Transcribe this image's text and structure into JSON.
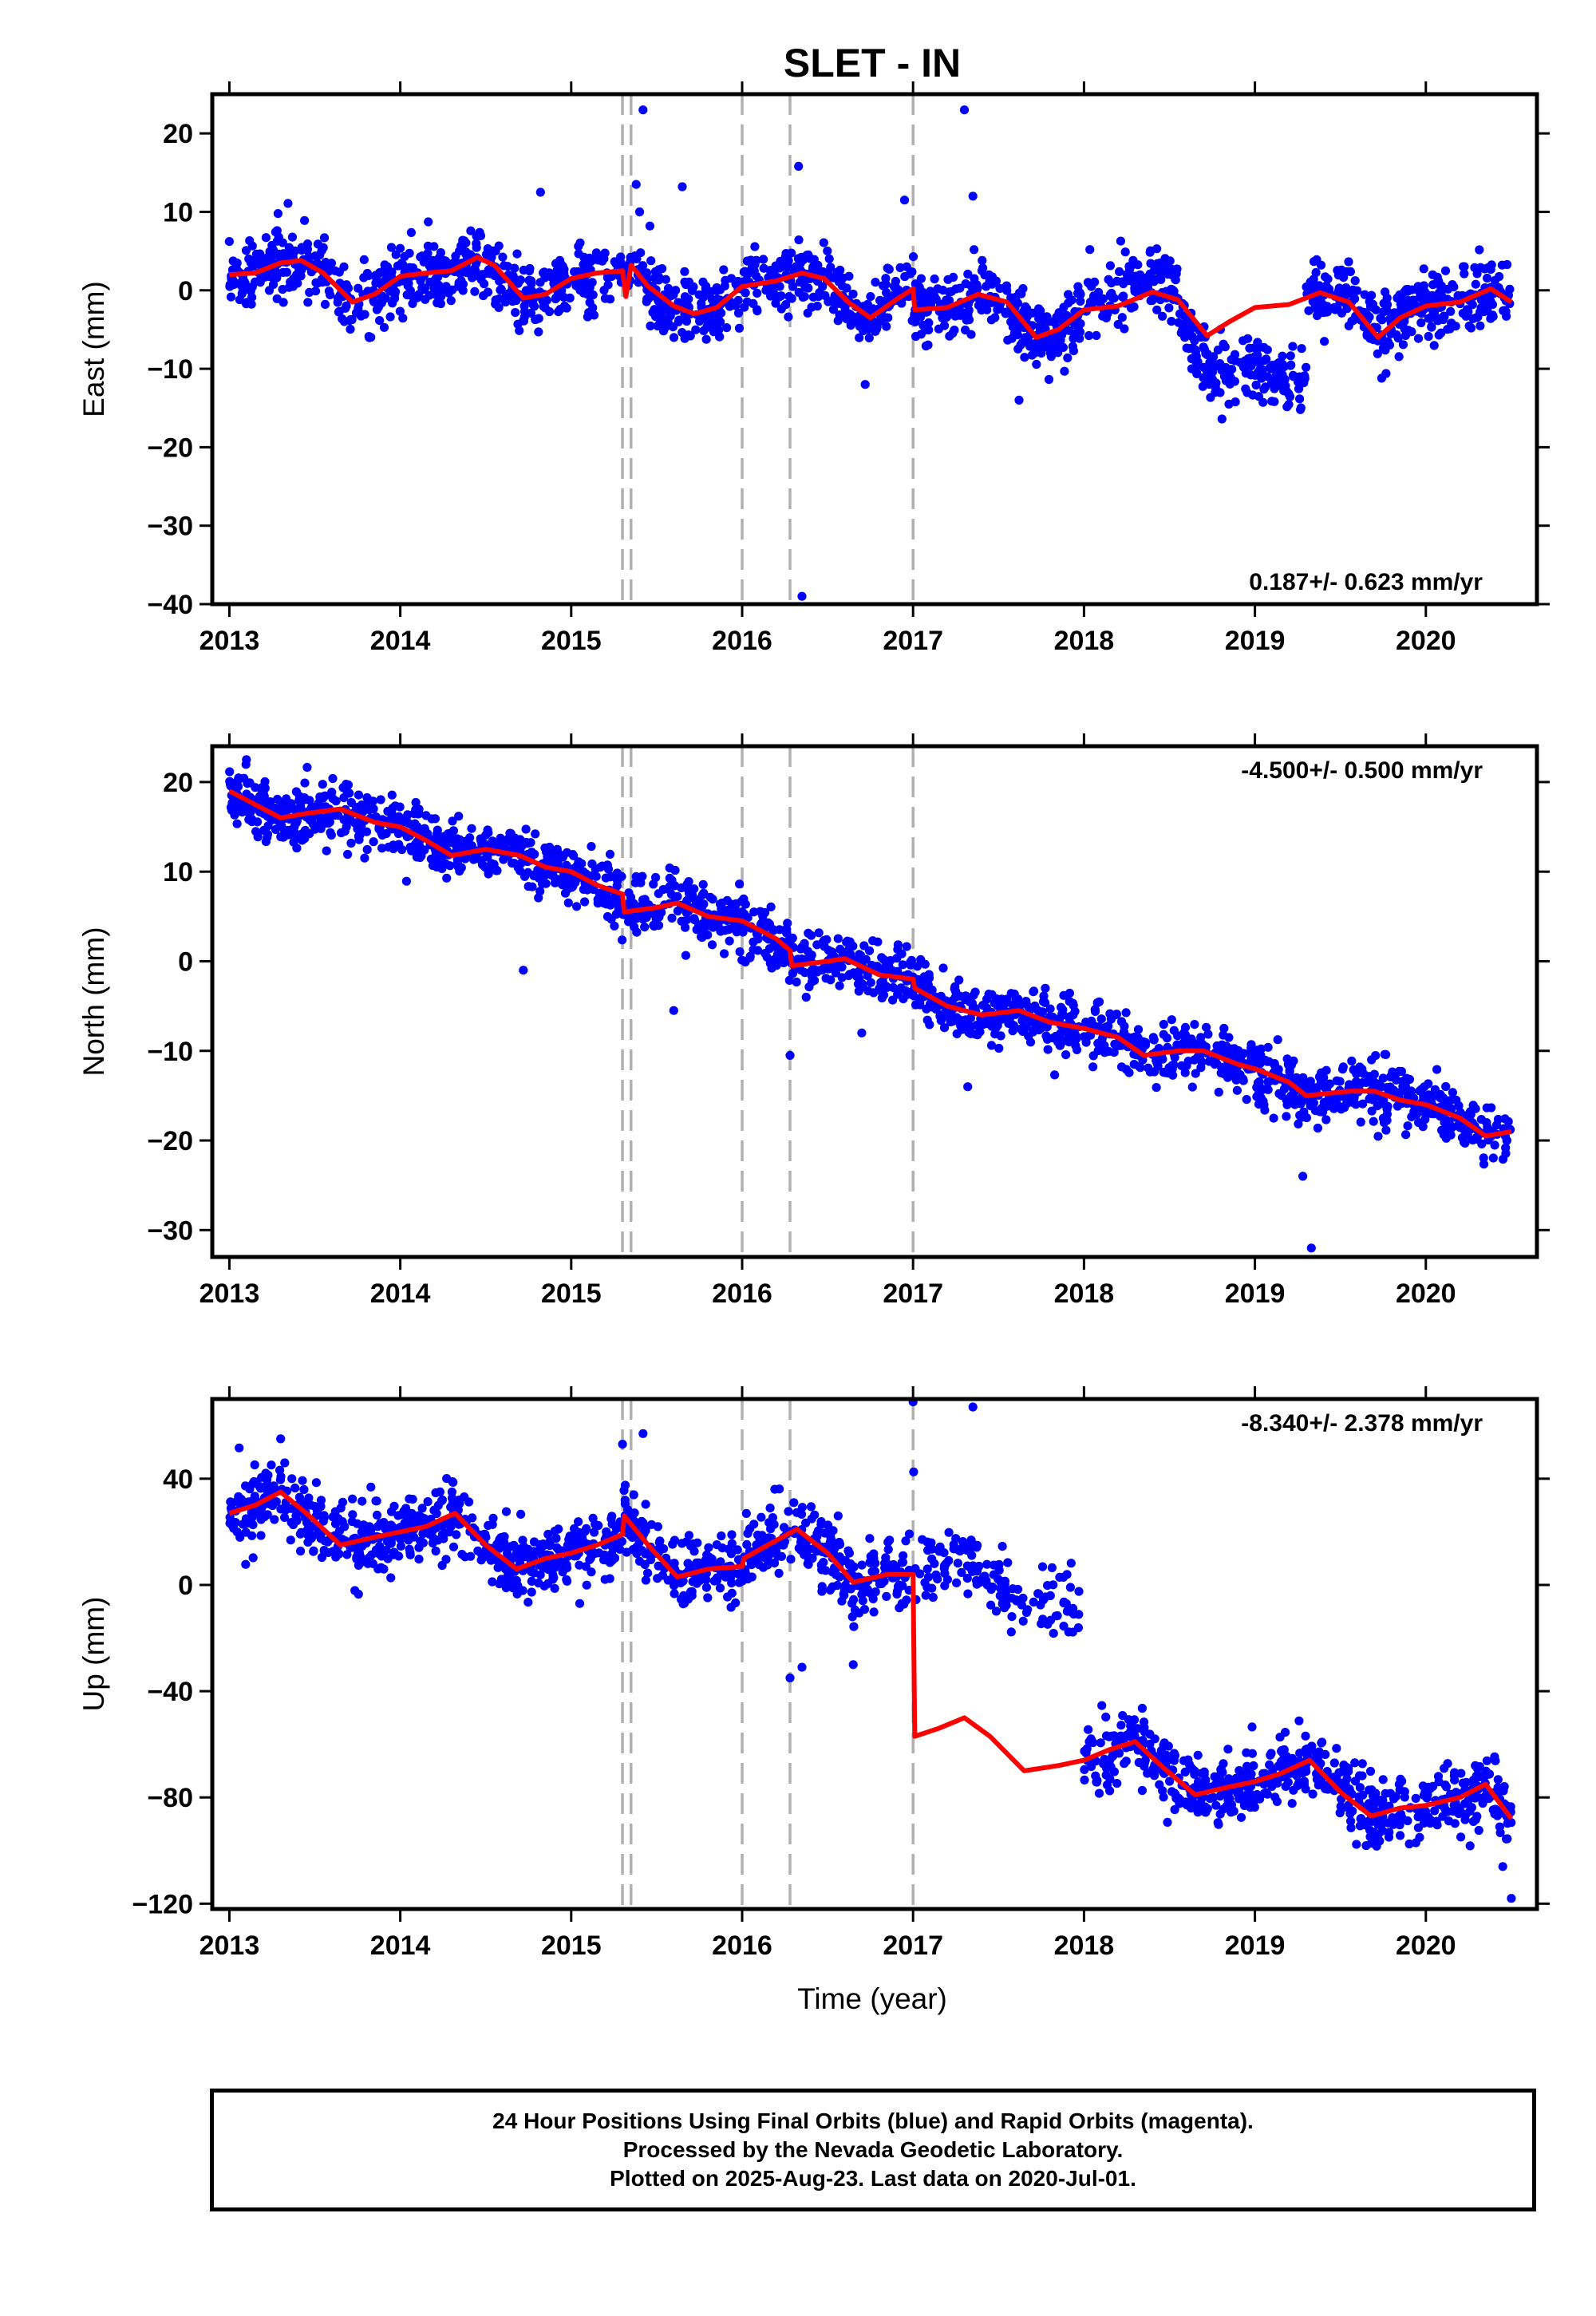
{
  "title": "SLET - IN",
  "xlabel": "Time (year)",
  "caption": {
    "line1": "24 Hour Positions Using Final Orbits (blue) and Rapid Orbits (magenta).",
    "line2": "Processed by the Nevada Geodetic Laboratory.",
    "line3": "Plotted on 2025-Aug-23. Last data on 2020-Jul-01."
  },
  "colors": {
    "final_orbits": "#0000ff",
    "model": "#ff0000",
    "event_lines": "#b0b0b0"
  },
  "chart_data": [
    {
      "type": "scatter",
      "component": "East",
      "ylabel": "East (mm)",
      "xlim": [
        2012.9,
        2020.65
      ],
      "ylim": [
        -40,
        25
      ],
      "xticks": [
        2013,
        2014,
        2015,
        2016,
        2017,
        2018,
        2019,
        2020
      ],
      "yticks": [
        20,
        10,
        0,
        -10,
        -20,
        -30,
        -40
      ],
      "ytick_labels": [
        "20",
        "10",
        "0",
        "−10",
        "−20",
        "−30",
        "−40"
      ],
      "rate": "0.187+/- 0.623 mm/yr",
      "rate_position": "bottom-right",
      "event_lines": [
        2015.3,
        2015.35,
        2016.0,
        2016.28,
        2017.0
      ],
      "model_line": [
        [
          2013.0,
          2
        ],
        [
          2013.15,
          2.2
        ],
        [
          2013.3,
          3.5
        ],
        [
          2013.42,
          3.8
        ],
        [
          2013.55,
          2.2
        ],
        [
          2013.72,
          -1.5
        ],
        [
          2013.85,
          -0.5
        ],
        [
          2014.0,
          1.8
        ],
        [
          2014.15,
          2.2
        ],
        [
          2014.3,
          2.5
        ],
        [
          2014.45,
          4.2
        ],
        [
          2014.55,
          3.2
        ],
        [
          2014.72,
          -1
        ],
        [
          2014.85,
          -0.5
        ],
        [
          2015.0,
          1.5
        ],
        [
          2015.15,
          2.2
        ],
        [
          2015.3,
          2.5
        ],
        [
          2015.32,
          -0.8
        ],
        [
          2015.35,
          3.2
        ],
        [
          2015.45,
          0.5
        ],
        [
          2015.6,
          -2
        ],
        [
          2015.72,
          -3
        ],
        [
          2015.85,
          -2.2
        ],
        [
          2016.0,
          0.5
        ],
        [
          2016.2,
          1.2
        ],
        [
          2016.35,
          2.2
        ],
        [
          2016.48,
          1.5
        ],
        [
          2016.62,
          -1.5
        ],
        [
          2016.75,
          -3.5
        ],
        [
          2016.9,
          -1.2
        ],
        [
          2017.0,
          0.2
        ],
        [
          2017.01,
          -2.5
        ],
        [
          2017.2,
          -2.2
        ],
        [
          2017.38,
          -0.5
        ],
        [
          2017.55,
          -1.5
        ],
        [
          2017.72,
          -6
        ],
        [
          2017.85,
          -5
        ],
        [
          2018.0,
          -2.5
        ],
        [
          2018.2,
          -2
        ],
        [
          2018.4,
          -0.2
        ],
        [
          2018.55,
          -1.2
        ],
        [
          2018.72,
          -5.8
        ],
        [
          2018.85,
          -4
        ],
        [
          2019.0,
          -2.2
        ],
        [
          2019.2,
          -1.8
        ],
        [
          2019.38,
          -0.3
        ],
        [
          2019.55,
          -1.5
        ],
        [
          2019.72,
          -6
        ],
        [
          2019.85,
          -3.5
        ],
        [
          2020.0,
          -2
        ],
        [
          2020.2,
          -1.5
        ],
        [
          2020.38,
          0.2
        ],
        [
          2020.5,
          -1.5
        ]
      ],
      "seed": 11,
      "noise_sd": 2.1,
      "scatter_segments": [
        {
          "from": 2013.0,
          "to": 2017.98,
          "n": 1280,
          "offset": 0
        },
        {
          "from": 2018.0,
          "to": 2018.55,
          "n": 130,
          "offset": 1.5
        },
        {
          "from": 2018.55,
          "to": 2019.3,
          "n": 190,
          "offset_ramp": [
            -2,
            -11
          ]
        },
        {
          "from": 2019.3,
          "to": 2020.5,
          "n": 320,
          "offset": 0
        }
      ],
      "outliers": [
        [
          2015.42,
          23
        ],
        [
          2016.35,
          -39
        ],
        [
          2017.3,
          23
        ],
        [
          2016.33,
          15.8
        ],
        [
          2017.35,
          12
        ],
        [
          2016.95,
          11.5
        ],
        [
          2015.65,
          13.2
        ],
        [
          2014.82,
          12.5
        ],
        [
          2015.38,
          13.5
        ],
        [
          2015.4,
          10
        ],
        [
          2017.62,
          -14
        ],
        [
          2016.72,
          -12
        ]
      ]
    },
    {
      "type": "scatter",
      "component": "North",
      "ylabel": "North (mm)",
      "xlim": [
        2012.9,
        2020.65
      ],
      "ylim": [
        -33,
        24
      ],
      "xticks": [
        2013,
        2014,
        2015,
        2016,
        2017,
        2018,
        2019,
        2020
      ],
      "yticks": [
        20,
        10,
        0,
        -10,
        -20,
        -30
      ],
      "ytick_labels": [
        "20",
        "10",
        "0",
        "−10",
        "−20",
        "−30"
      ],
      "rate": "-4.500+/- 0.500 mm/yr",
      "rate_position": "top-right",
      "event_lines": [
        2015.3,
        2015.35,
        2016.0,
        2016.28,
        2017.0
      ],
      "model_line": [
        [
          2013.0,
          19
        ],
        [
          2013.15,
          17.5
        ],
        [
          2013.3,
          16
        ],
        [
          2013.45,
          16.5
        ],
        [
          2013.65,
          17
        ],
        [
          2013.85,
          15.5
        ],
        [
          2014.0,
          15
        ],
        [
          2014.15,
          13.5
        ],
        [
          2014.3,
          11.8
        ],
        [
          2014.5,
          12.5
        ],
        [
          2014.7,
          11.8
        ],
        [
          2014.85,
          10.5
        ],
        [
          2015.0,
          10
        ],
        [
          2015.15,
          8.5
        ],
        [
          2015.3,
          7.5
        ],
        [
          2015.31,
          5.5
        ],
        [
          2015.5,
          6
        ],
        [
          2015.62,
          6.5
        ],
        [
          2015.8,
          5
        ],
        [
          2016.0,
          4.5
        ],
        [
          2016.2,
          2.5
        ],
        [
          2016.28,
          1.2
        ],
        [
          2016.29,
          -0.5
        ],
        [
          2016.5,
          0
        ],
        [
          2016.6,
          0.3
        ],
        [
          2016.8,
          -1.5
        ],
        [
          2017.0,
          -2
        ],
        [
          2017.01,
          -3
        ],
        [
          2017.2,
          -5
        ],
        [
          2017.4,
          -6
        ],
        [
          2017.62,
          -5.5
        ],
        [
          2017.8,
          -6.8
        ],
        [
          2018.0,
          -7.5
        ],
        [
          2018.2,
          -8.5
        ],
        [
          2018.35,
          -10.5
        ],
        [
          2018.55,
          -10
        ],
        [
          2018.7,
          -10
        ],
        [
          2018.9,
          -11.5
        ],
        [
          2019.0,
          -12
        ],
        [
          2019.2,
          -13.5
        ],
        [
          2019.3,
          -15
        ],
        [
          2019.55,
          -14.5
        ],
        [
          2019.7,
          -14.5
        ],
        [
          2019.85,
          -15.5
        ],
        [
          2020.0,
          -16
        ],
        [
          2020.2,
          -17.5
        ],
        [
          2020.35,
          -19.5
        ],
        [
          2020.5,
          -19
        ]
      ],
      "seed": 22,
      "noise_sd": 1.6,
      "scatter_segments": [
        {
          "from": 2013.0,
          "to": 2017.98,
          "n": 1280,
          "offset": 0
        },
        {
          "from": 2018.0,
          "to": 2020.5,
          "n": 620,
          "offset": 0
        }
      ],
      "outliers": [
        [
          2019.33,
          -32
        ],
        [
          2019.28,
          -24
        ],
        [
          2016.28,
          -10.5
        ],
        [
          2014.72,
          -1
        ],
        [
          2017.32,
          -14
        ],
        [
          2015.6,
          -5.5
        ],
        [
          2013.1,
          22.5
        ],
        [
          2016.7,
          -8
        ]
      ]
    },
    {
      "type": "scatter",
      "component": "Up",
      "ylabel": "Up (mm)",
      "xlim": [
        2012.9,
        2020.65
      ],
      "ylim": [
        -122,
        70
      ],
      "xticks": [
        2013,
        2014,
        2015,
        2016,
        2017,
        2018,
        2019,
        2020
      ],
      "yticks": [
        40,
        0,
        -40,
        -80,
        -120
      ],
      "ytick_labels": [
        "40",
        "0",
        "−40",
        "−80",
        "−120"
      ],
      "rate": "-8.340+/- 2.378 mm/yr",
      "rate_position": "top-right",
      "event_lines": [
        2015.3,
        2015.35,
        2016.0,
        2016.28,
        2017.0
      ],
      "model_line": [
        [
          2013.0,
          27
        ],
        [
          2013.15,
          30
        ],
        [
          2013.3,
          35
        ],
        [
          2013.45,
          27
        ],
        [
          2013.65,
          15
        ],
        [
          2013.85,
          18
        ],
        [
          2014.0,
          20
        ],
        [
          2014.15,
          22
        ],
        [
          2014.32,
          27
        ],
        [
          2014.5,
          15
        ],
        [
          2014.68,
          6
        ],
        [
          2014.85,
          10
        ],
        [
          2015.0,
          12
        ],
        [
          2015.15,
          15
        ],
        [
          2015.3,
          19
        ],
        [
          2015.31,
          26
        ],
        [
          2015.45,
          15
        ],
        [
          2015.62,
          3
        ],
        [
          2015.8,
          6
        ],
        [
          2016.0,
          7
        ],
        [
          2016.01,
          10
        ],
        [
          2016.15,
          15
        ],
        [
          2016.32,
          21
        ],
        [
          2016.5,
          12
        ],
        [
          2016.65,
          1
        ],
        [
          2016.85,
          4
        ],
        [
          2017.0,
          4
        ],
        [
          2017.01,
          -57
        ],
        [
          2017.15,
          -54
        ],
        [
          2017.3,
          -50
        ],
        [
          2017.45,
          -57
        ],
        [
          2017.65,
          -70
        ],
        [
          2017.85,
          -68
        ],
        [
          2018.0,
          -66
        ],
        [
          2018.15,
          -62
        ],
        [
          2018.3,
          -59
        ],
        [
          2018.45,
          -68
        ],
        [
          2018.65,
          -79
        ],
        [
          2018.85,
          -76
        ],
        [
          2019.0,
          -74
        ],
        [
          2019.15,
          -71
        ],
        [
          2019.32,
          -66
        ],
        [
          2019.5,
          -78
        ],
        [
          2019.68,
          -87
        ],
        [
          2019.85,
          -84
        ],
        [
          2020.0,
          -83
        ],
        [
          2020.2,
          -80
        ],
        [
          2020.35,
          -75
        ],
        [
          2020.5,
          -88
        ]
      ],
      "seed": 33,
      "noise_sd": 6.5,
      "scatter_segments": [
        {
          "from": 2013.0,
          "to": 2016.98,
          "n": 1020,
          "offset": 0
        },
        {
          "from": 2017.0,
          "to": 2017.98,
          "n": 140,
          "offset": 60
        },
        {
          "from": 2018.0,
          "to": 2020.5,
          "n": 620,
          "offset": 0
        }
      ],
      "outliers": [
        [
          2017.35,
          67
        ],
        [
          2015.42,
          57
        ],
        [
          2016.28,
          -35
        ],
        [
          2016.35,
          -31
        ],
        [
          2015.3,
          53
        ],
        [
          2013.3,
          55
        ],
        [
          2020.5,
          -118
        ],
        [
          2020.45,
          -106
        ],
        [
          2016.65,
          -30
        ]
      ]
    }
  ]
}
